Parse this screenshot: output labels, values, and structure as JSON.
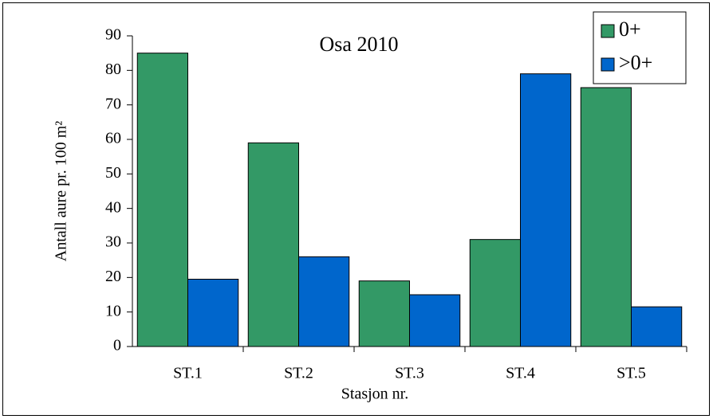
{
  "chart_data": {
    "type": "bar",
    "title": "Osa 2010",
    "xlabel": "Stasjon nr.",
    "ylabel": "Antall aure pr. 100 m²",
    "categories": [
      "ST.1",
      "ST.2",
      "ST.3",
      "ST.4",
      "ST.5"
    ],
    "series": [
      {
        "name": "0+",
        "color": "#339966",
        "values": [
          85,
          59,
          19,
          31,
          75
        ]
      },
      {
        "name": ">0+",
        "color": "#0066cc",
        "values": [
          19.5,
          26,
          15,
          79,
          11.5
        ]
      }
    ],
    "ylim": [
      0,
      90
    ],
    "yticks": [
      0,
      10,
      20,
      30,
      40,
      50,
      60,
      70,
      80,
      90
    ],
    "grid": false,
    "legend": "upper right"
  }
}
